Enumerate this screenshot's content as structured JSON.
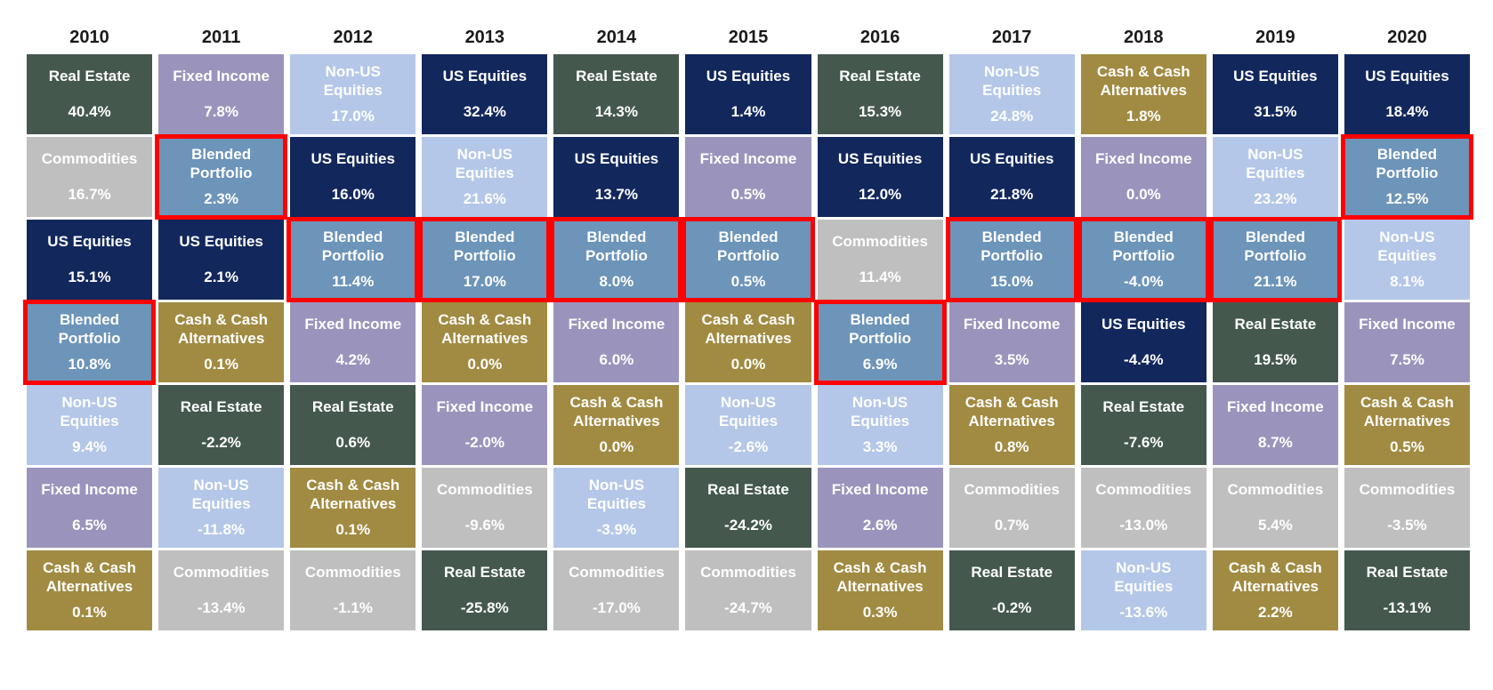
{
  "chart_data": {
    "type": "table",
    "title": "",
    "description": "Quilt chart of asset class annual returns ranked best-to-worst within each year, 2010-2020; Blended Portfolio cells outlined in red",
    "highlight_color": "#FF0000",
    "columns": [
      "2010",
      "2011",
      "2012",
      "2013",
      "2014",
      "2015",
      "2016",
      "2017",
      "2018",
      "2019",
      "2020"
    ],
    "asset_classes": {
      "real_estate": {
        "label": "Real Estate",
        "color": "#44584E"
      },
      "fixed_income": {
        "label": "Fixed Income",
        "color": "#9A94BD"
      },
      "non_us": {
        "label": "Non-US\nEquities",
        "color": "#B4C7E8"
      },
      "us_equities": {
        "label": "US Equities",
        "color": "#12275C"
      },
      "cash": {
        "label": "Cash & Cash\nAlternatives",
        "color": "#A18B42"
      },
      "commodities": {
        "label": "Commodities",
        "color": "#BFBFBF"
      },
      "blended": {
        "label": "Blended\nPortfolio",
        "color": "#6D94B9"
      }
    },
    "years": [
      {
        "year": "2010",
        "cells": [
          {
            "asset": "real_estate",
            "value": "40.4%"
          },
          {
            "asset": "commodities",
            "value": "16.7%"
          },
          {
            "asset": "us_equities",
            "value": "15.1%"
          },
          {
            "asset": "blended",
            "value": "10.8%",
            "highlight": true
          },
          {
            "asset": "non_us",
            "value": "9.4%"
          },
          {
            "asset": "fixed_income",
            "value": "6.5%"
          },
          {
            "asset": "cash",
            "value": "0.1%"
          }
        ]
      },
      {
        "year": "2011",
        "cells": [
          {
            "asset": "fixed_income",
            "value": "7.8%"
          },
          {
            "asset": "blended",
            "value": "2.3%",
            "highlight": true
          },
          {
            "asset": "us_equities",
            "value": "2.1%"
          },
          {
            "asset": "cash",
            "value": "0.1%"
          },
          {
            "asset": "real_estate",
            "value": "-2.2%"
          },
          {
            "asset": "non_us",
            "value": "-11.8%"
          },
          {
            "asset": "commodities",
            "value": "-13.4%"
          }
        ]
      },
      {
        "year": "2012",
        "cells": [
          {
            "asset": "non_us",
            "value": "17.0%"
          },
          {
            "asset": "us_equities",
            "value": "16.0%"
          },
          {
            "asset": "blended",
            "value": "11.4%",
            "highlight": true
          },
          {
            "asset": "fixed_income",
            "value": "4.2%"
          },
          {
            "asset": "real_estate",
            "value": "0.6%"
          },
          {
            "asset": "cash",
            "value": "0.1%"
          },
          {
            "asset": "commodities",
            "value": "-1.1%"
          }
        ]
      },
      {
        "year": "2013",
        "cells": [
          {
            "asset": "us_equities",
            "value": "32.4%"
          },
          {
            "asset": "non_us",
            "value": "21.6%"
          },
          {
            "asset": "blended",
            "value": "17.0%",
            "highlight": true
          },
          {
            "asset": "cash",
            "value": "0.0%"
          },
          {
            "asset": "fixed_income",
            "value": "-2.0%"
          },
          {
            "asset": "commodities",
            "value": "-9.6%"
          },
          {
            "asset": "real_estate",
            "value": "-25.8%"
          }
        ]
      },
      {
        "year": "2014",
        "cells": [
          {
            "asset": "real_estate",
            "value": "14.3%"
          },
          {
            "asset": "us_equities",
            "value": "13.7%"
          },
          {
            "asset": "blended",
            "value": "8.0%",
            "highlight": true
          },
          {
            "asset": "fixed_income",
            "value": "6.0%"
          },
          {
            "asset": "cash",
            "value": "0.0%"
          },
          {
            "asset": "non_us",
            "value": "-3.9%"
          },
          {
            "asset": "commodities",
            "value": "-17.0%"
          }
        ]
      },
      {
        "year": "2015",
        "cells": [
          {
            "asset": "us_equities",
            "value": "1.4%"
          },
          {
            "asset": "fixed_income",
            "value": "0.5%"
          },
          {
            "asset": "blended",
            "value": "0.5%",
            "highlight": true
          },
          {
            "asset": "cash",
            "value": "0.0%"
          },
          {
            "asset": "non_us",
            "value": "-2.6%"
          },
          {
            "asset": "real_estate",
            "value": "-24.2%"
          },
          {
            "asset": "commodities",
            "value": "-24.7%"
          }
        ]
      },
      {
        "year": "2016",
        "cells": [
          {
            "asset": "real_estate",
            "value": "15.3%"
          },
          {
            "asset": "us_equities",
            "value": "12.0%"
          },
          {
            "asset": "commodities",
            "value": "11.4%"
          },
          {
            "asset": "blended",
            "value": "6.9%",
            "highlight": true
          },
          {
            "asset": "non_us",
            "value": "3.3%"
          },
          {
            "asset": "fixed_income",
            "value": "2.6%"
          },
          {
            "asset": "cash",
            "value": "0.3%"
          }
        ]
      },
      {
        "year": "2017",
        "cells": [
          {
            "asset": "non_us",
            "value": "24.8%"
          },
          {
            "asset": "us_equities",
            "value": "21.8%"
          },
          {
            "asset": "blended",
            "value": "15.0%",
            "highlight": true
          },
          {
            "asset": "fixed_income",
            "value": "3.5%"
          },
          {
            "asset": "cash",
            "value": "0.8%"
          },
          {
            "asset": "commodities",
            "value": "0.7%"
          },
          {
            "asset": "real_estate",
            "value": "-0.2%"
          }
        ]
      },
      {
        "year": "2018",
        "cells": [
          {
            "asset": "cash",
            "value": "1.8%"
          },
          {
            "asset": "fixed_income",
            "value": "0.0%"
          },
          {
            "asset": "blended",
            "value": "-4.0%",
            "highlight": true
          },
          {
            "asset": "us_equities",
            "value": "-4.4%"
          },
          {
            "asset": "real_estate",
            "value": "-7.6%"
          },
          {
            "asset": "commodities",
            "value": "-13.0%"
          },
          {
            "asset": "non_us",
            "value": "-13.6%"
          }
        ]
      },
      {
        "year": "2019",
        "cells": [
          {
            "asset": "us_equities",
            "value": "31.5%"
          },
          {
            "asset": "non_us",
            "value": "23.2%"
          },
          {
            "asset": "blended",
            "value": "21.1%",
            "highlight": true
          },
          {
            "asset": "real_estate",
            "value": "19.5%"
          },
          {
            "asset": "fixed_income",
            "value": "8.7%"
          },
          {
            "asset": "commodities",
            "value": "5.4%"
          },
          {
            "asset": "cash",
            "value": "2.2%"
          }
        ]
      },
      {
        "year": "2020",
        "cells": [
          {
            "asset": "us_equities",
            "value": "18.4%"
          },
          {
            "asset": "blended",
            "value": "12.5%",
            "highlight": true
          },
          {
            "asset": "non_us",
            "value": "8.1%"
          },
          {
            "asset": "fixed_income",
            "value": "7.5%"
          },
          {
            "asset": "cash",
            "value": "0.5%"
          },
          {
            "asset": "commodities",
            "value": "-3.5%"
          },
          {
            "asset": "real_estate",
            "value": "-13.1%"
          }
        ]
      }
    ]
  }
}
